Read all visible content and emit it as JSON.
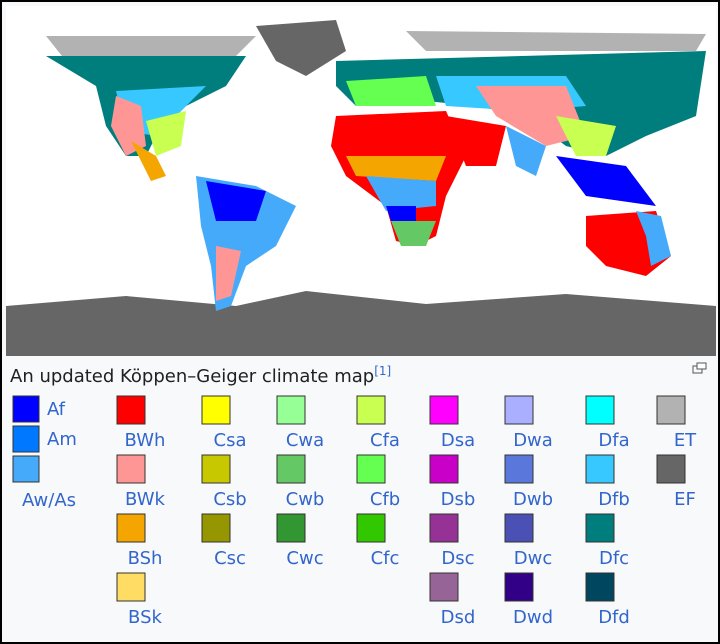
{
  "caption": {
    "text": "An updated Köppen–Geiger climate map",
    "reference": "[1]"
  },
  "legend": {
    "columns": [
      [
        {
          "code": "Af",
          "color": "#0000ff"
        },
        {
          "code": "Am",
          "color": "#0078ff"
        },
        {
          "code": "Aw/As",
          "color": "#46aafa"
        }
      ],
      [
        {
          "code": "BWh",
          "color": "#ff0000"
        },
        {
          "code": "BWk",
          "color": "#ff9696"
        },
        {
          "code": "BSh",
          "color": "#f5a500"
        },
        {
          "code": "BSk",
          "color": "#ffdc64"
        }
      ],
      [
        {
          "code": "Csa",
          "color": "#ffff00"
        },
        {
          "code": "Csb",
          "color": "#c8c800"
        },
        {
          "code": "Csc",
          "color": "#969600"
        }
      ],
      [
        {
          "code": "Cwa",
          "color": "#96ff96"
        },
        {
          "code": "Cwb",
          "color": "#64c864"
        },
        {
          "code": "Cwc",
          "color": "#329632"
        }
      ],
      [
        {
          "code": "Cfa",
          "color": "#c8ff50"
        },
        {
          "code": "Cfb",
          "color": "#64ff50"
        },
        {
          "code": "Cfc",
          "color": "#32c800"
        }
      ],
      [
        {
          "code": "Dsa",
          "color": "#ff00ff"
        },
        {
          "code": "Dsb",
          "color": "#c800c8"
        },
        {
          "code": "Dsc",
          "color": "#963296"
        },
        {
          "code": "Dsd",
          "color": "#966496"
        }
      ],
      [
        {
          "code": "Dwa",
          "color": "#aaafff"
        },
        {
          "code": "Dwb",
          "color": "#5a78dc"
        },
        {
          "code": "Dwc",
          "color": "#4b50b4"
        },
        {
          "code": "Dwd",
          "color": "#320087"
        }
      ],
      [
        {
          "code": "Dfa",
          "color": "#00ffff"
        },
        {
          "code": "Dfb",
          "color": "#37c8ff"
        },
        {
          "code": "Dfc",
          "color": "#007d7d"
        },
        {
          "code": "Dfd",
          "color": "#00465f"
        }
      ],
      [
        {
          "code": "ET",
          "color": "#b2b2b2"
        },
        {
          "code": "EF",
          "color": "#666666"
        }
      ]
    ]
  }
}
